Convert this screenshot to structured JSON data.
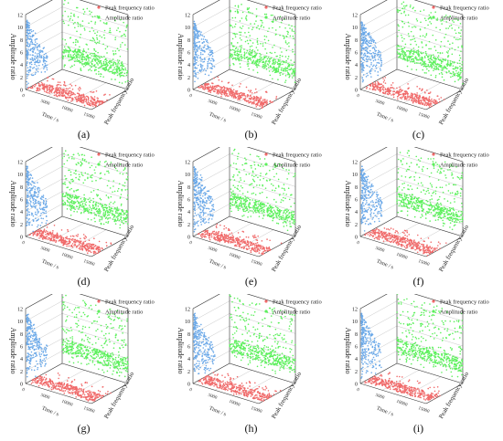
{
  "figure": {
    "panels": [
      {
        "label": "(a)"
      },
      {
        "label": "(b)"
      },
      {
        "label": "(c)"
      },
      {
        "label": "(d)"
      },
      {
        "label": "(e)"
      },
      {
        "label": "(f)"
      },
      {
        "label": "(g)"
      },
      {
        "label": "(h)"
      },
      {
        "label": "(i)"
      }
    ]
  },
  "colors": {
    "peak_frequency_ratio": "#f06a6a",
    "amplitude_ratio": "#5cf05c",
    "scatter_side_wall": "#6aa8e8",
    "grid": "#c8c8c8",
    "axis": "#333333"
  },
  "chart_data": [
    {
      "panel": "a",
      "type": "scatter",
      "title": "",
      "zlabel": "Amplitude ratio",
      "xlabel": "Time / s",
      "ylabel": "Peak frequency ratio",
      "zlim": [
        0,
        12
      ],
      "zticks": [
        "0",
        "2",
        "4",
        "6",
        "8",
        "10",
        "12"
      ],
      "xticks": [
        "0",
        "5000",
        "10000",
        "15000"
      ],
      "legend": {
        "placement": "top-right",
        "entries": [
          "Peak frequency ratio",
          "Amplitude ratio"
        ]
      },
      "series": [
        {
          "name": "Peak frequency ratio"
        },
        {
          "name": "Amplitude ratio"
        }
      ]
    },
    {
      "panel": "b",
      "type": "scatter",
      "title": "",
      "zlabel": "Amplitude ratio",
      "xlabel": "Time / s",
      "ylabel": "Peak frequency ratio",
      "zlim": [
        0,
        12
      ],
      "zticks": [
        "0",
        "2",
        "4",
        "6",
        "8",
        "10",
        "12"
      ],
      "xticks": [
        "0",
        "5000",
        "10000",
        "15000"
      ],
      "legend": {
        "placement": "top-right",
        "entries": [
          "Peak frequency ratio",
          "Amplitude ratio"
        ]
      },
      "series": [
        {
          "name": "Peak frequency ratio"
        },
        {
          "name": "Amplitude ratio"
        }
      ]
    },
    {
      "panel": "c",
      "type": "scatter",
      "title": "",
      "zlabel": "Amplitude ratio",
      "xlabel": "Time / s",
      "ylabel": "Peak frequency ratio",
      "zlim": [
        0,
        12
      ],
      "zticks": [
        "0",
        "2",
        "4",
        "6",
        "8",
        "10",
        "12"
      ],
      "xticks": [
        "0",
        "5000",
        "10000",
        "15000"
      ],
      "legend": {
        "placement": "top-right",
        "entries": [
          "Peak frequency ratio",
          "Amplitude ratio"
        ]
      },
      "series": [
        {
          "name": "Peak frequency ratio"
        },
        {
          "name": "Amplitude ratio"
        }
      ]
    },
    {
      "panel": "d",
      "type": "scatter",
      "title": "",
      "zlabel": "Amplitude ratio",
      "xlabel": "Time / s",
      "ylabel": "Peak frequency ratio",
      "zlim": [
        0,
        12
      ],
      "zticks": [
        "0",
        "2",
        "4",
        "6",
        "8",
        "10",
        "12"
      ],
      "xticks": [
        "0",
        "5000",
        "10000",
        "15000"
      ],
      "legend": {
        "placement": "top-right",
        "entries": [
          "Peak frequency ratio",
          "Amplitude ratio"
        ]
      },
      "series": [
        {
          "name": "Peak frequency ratio"
        },
        {
          "name": "Amplitude ratio"
        }
      ]
    },
    {
      "panel": "e",
      "type": "scatter",
      "title": "",
      "zlabel": "Amplitude ratio",
      "xlabel": "Time / s",
      "ylabel": "Peak frequency ratio",
      "zlim": [
        0,
        12
      ],
      "zticks": [
        "0",
        "2",
        "4",
        "6",
        "8",
        "10",
        "12"
      ],
      "xticks": [
        "0",
        "5000",
        "10000",
        "15000"
      ],
      "legend": {
        "placement": "top-right",
        "entries": [
          "Peak frequency ratio",
          "Amplitude ratio"
        ]
      },
      "series": [
        {
          "name": "Peak frequency ratio"
        },
        {
          "name": "Amplitude ratio"
        }
      ]
    },
    {
      "panel": "f",
      "type": "scatter",
      "title": "",
      "zlabel": "Amplitude ratio",
      "xlabel": "Time / s",
      "ylabel": "Peak frequency ratio",
      "zlim": [
        0,
        12
      ],
      "zticks": [
        "0",
        "2",
        "4",
        "6",
        "8",
        "10",
        "12"
      ],
      "xticks": [
        "0",
        "5000",
        "10000",
        "15000"
      ],
      "legend": {
        "placement": "top-right",
        "entries": [
          "Peak frequency ratio",
          "Amplitude ratio"
        ]
      },
      "series": [
        {
          "name": "Peak frequency ratio"
        },
        {
          "name": "Amplitude ratio"
        }
      ]
    },
    {
      "panel": "g",
      "type": "scatter",
      "title": "",
      "zlabel": "Amplitude ratio",
      "xlabel": "Time / s",
      "ylabel": "Peak frequency ratio",
      "zlim": [
        0,
        12
      ],
      "zticks": [
        "0",
        "2",
        "4",
        "6",
        "8",
        "10",
        "12"
      ],
      "xticks": [
        "0",
        "5000",
        "10000",
        "15000"
      ],
      "legend": {
        "placement": "top-right",
        "entries": [
          "Peak frequency ratio",
          "Amplitude ratio"
        ]
      },
      "series": [
        {
          "name": "Peak frequency ratio"
        },
        {
          "name": "Amplitude ratio"
        }
      ]
    },
    {
      "panel": "h",
      "type": "scatter",
      "title": "",
      "zlabel": "Amplitude ratio",
      "xlabel": "Time / s",
      "ylabel": "Peak frequency ratio",
      "zlim": [
        0,
        12
      ],
      "zticks": [
        "0",
        "2",
        "4",
        "6",
        "8",
        "10",
        "12"
      ],
      "xticks": [
        "0",
        "5000",
        "10000",
        "15000"
      ],
      "legend": {
        "placement": "top-right",
        "entries": [
          "Peak frequency ratio",
          "Amplitude ratio"
        ]
      },
      "series": [
        {
          "name": "Peak frequency ratio"
        },
        {
          "name": "Amplitude ratio"
        }
      ]
    },
    {
      "panel": "i",
      "type": "scatter",
      "title": "",
      "zlabel": "Amplitude ratio",
      "xlabel": "Time / s",
      "ylabel": "Peak frequency ratio",
      "zlim": [
        0,
        12
      ],
      "zticks": [
        "0",
        "2",
        "4",
        "6",
        "8",
        "10",
        "12"
      ],
      "xticks": [
        "0",
        "5000",
        "10000",
        "15000"
      ],
      "legend": {
        "placement": "top-right",
        "entries": [
          "Peak frequency ratio",
          "Amplitude ratio"
        ]
      },
      "series": [
        {
          "name": "Peak frequency ratio"
        },
        {
          "name": "Amplitude ratio"
        }
      ]
    }
  ]
}
